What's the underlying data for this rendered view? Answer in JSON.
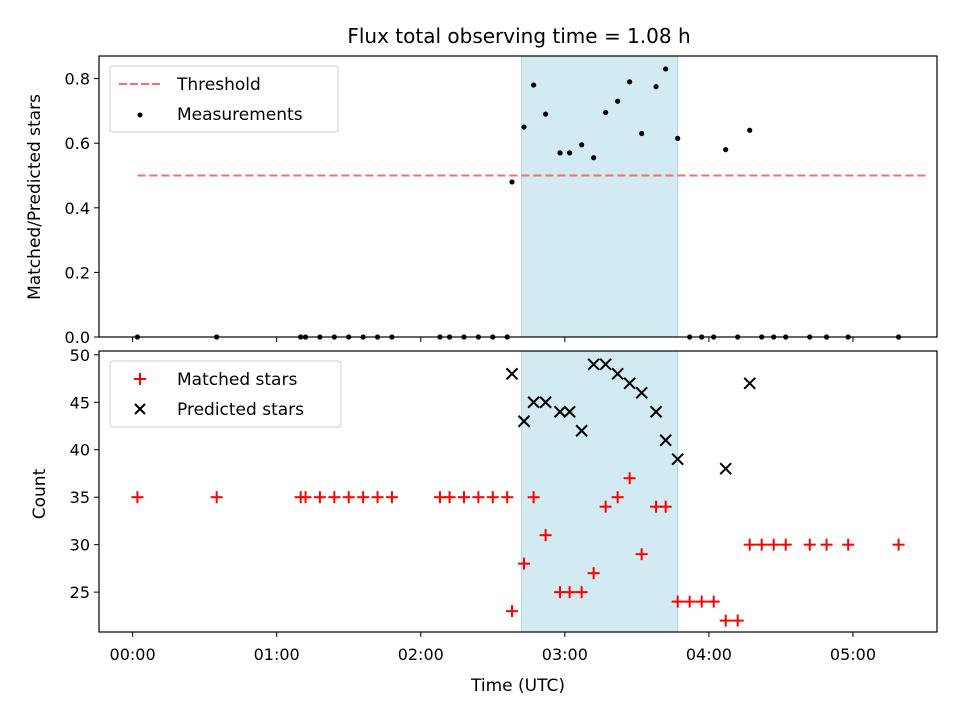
{
  "chart_data": [
    {
      "type": "scatter",
      "title": "Flux total observing time = 1.08 h",
      "ylabel": "Matched/Predicted stars",
      "ylim": [
        0,
        0.87
      ],
      "yticks": [
        0.0,
        0.2,
        0.4,
        0.6,
        0.8
      ],
      "ytick_labels": [
        "0.0",
        "0.2",
        "0.4",
        "0.6",
        "0.8"
      ],
      "legend_position": "top-left",
      "shaded_interval": [
        "02:42",
        "03:47"
      ],
      "shade_color": "#add8e6",
      "threshold": {
        "name": "Threshold",
        "value": 0.5,
        "x_range": [
          "00:02",
          "05:31"
        ],
        "style": "dashed",
        "color": "#ff6b6b"
      },
      "series": [
        {
          "name": "Measurements",
          "marker": "dot",
          "color": "#000000",
          "points": [
            [
              "00:02",
              0.0
            ],
            [
              "00:35",
              0.0
            ],
            [
              "01:10",
              0.0
            ],
            [
              "01:12",
              0.0
            ],
            [
              "01:18",
              0.0
            ],
            [
              "01:24",
              0.0
            ],
            [
              "01:30",
              0.0
            ],
            [
              "01:36",
              0.0
            ],
            [
              "01:42",
              0.0
            ],
            [
              "01:48",
              0.0
            ],
            [
              "02:08",
              0.0
            ],
            [
              "02:12",
              0.0
            ],
            [
              "02:18",
              0.0
            ],
            [
              "02:24",
              0.0
            ],
            [
              "02:30",
              0.0
            ],
            [
              "02:36",
              0.0
            ],
            [
              "02:38",
              0.48
            ],
            [
              "02:43",
              0.65
            ],
            [
              "02:47",
              0.78
            ],
            [
              "02:52",
              0.69
            ],
            [
              "02:58",
              0.57
            ],
            [
              "03:02",
              0.57
            ],
            [
              "03:07",
              0.595
            ],
            [
              "03:12",
              0.555
            ],
            [
              "03:17",
              0.695
            ],
            [
              "03:22",
              0.73
            ],
            [
              "03:27",
              0.79
            ],
            [
              "03:32",
              0.63
            ],
            [
              "03:38",
              0.775
            ],
            [
              "03:42",
              0.83
            ],
            [
              "03:47",
              0.615
            ],
            [
              "03:52",
              0.0
            ],
            [
              "03:57",
              0.0
            ],
            [
              "04:02",
              0.0
            ],
            [
              "04:07",
              0.58
            ],
            [
              "04:12",
              0.0
            ],
            [
              "04:17",
              0.64
            ],
            [
              "04:22",
              0.0
            ],
            [
              "04:27",
              0.0
            ],
            [
              "04:32",
              0.0
            ],
            [
              "04:42",
              0.0
            ],
            [
              "04:49",
              0.0
            ],
            [
              "04:58",
              0.0
            ],
            [
              "05:19",
              0.0
            ]
          ]
        }
      ]
    },
    {
      "type": "scatter",
      "xlabel": "Time (UTC)",
      "ylabel": "Count",
      "ylim": [
        20.8,
        50.4
      ],
      "yticks": [
        25,
        30,
        35,
        40,
        45,
        50
      ],
      "ytick_labels": [
        "25",
        "30",
        "35",
        "40",
        "45",
        "50"
      ],
      "xlim": [
        "-00:14",
        "05:35"
      ],
      "xticks": [
        "00:00",
        "01:00",
        "02:00",
        "03:00",
        "04:00",
        "05:00"
      ],
      "xtick_labels": [
        "00:00",
        "01:00",
        "02:00",
        "03:00",
        "04:00",
        "05:00"
      ],
      "legend_position": "top-left",
      "shaded_interval": [
        "02:42",
        "03:47"
      ],
      "shade_color": "#add8e6",
      "series": [
        {
          "name": "Matched stars",
          "marker": "plus",
          "color": "#ff0000",
          "points": [
            [
              "00:02",
              35
            ],
            [
              "00:35",
              35
            ],
            [
              "01:10",
              35
            ],
            [
              "01:12",
              35
            ],
            [
              "01:18",
              35
            ],
            [
              "01:24",
              35
            ],
            [
              "01:30",
              35
            ],
            [
              "01:36",
              35
            ],
            [
              "01:42",
              35
            ],
            [
              "01:48",
              35
            ],
            [
              "02:08",
              35
            ],
            [
              "02:12",
              35
            ],
            [
              "02:18",
              35
            ],
            [
              "02:24",
              35
            ],
            [
              "02:30",
              35
            ],
            [
              "02:36",
              35
            ],
            [
              "02:38",
              23
            ],
            [
              "02:43",
              28
            ],
            [
              "02:47",
              35
            ],
            [
              "02:52",
              31
            ],
            [
              "02:58",
              25
            ],
            [
              "03:02",
              25
            ],
            [
              "03:07",
              25
            ],
            [
              "03:12",
              27
            ],
            [
              "03:17",
              34
            ],
            [
              "03:22",
              35
            ],
            [
              "03:27",
              37
            ],
            [
              "03:32",
              29
            ],
            [
              "03:38",
              34
            ],
            [
              "03:42",
              34
            ],
            [
              "03:47",
              24
            ],
            [
              "03:52",
              24
            ],
            [
              "03:57",
              24
            ],
            [
              "04:02",
              24
            ],
            [
              "04:07",
              22
            ],
            [
              "04:12",
              22
            ],
            [
              "04:17",
              30
            ],
            [
              "04:22",
              30
            ],
            [
              "04:27",
              30
            ],
            [
              "04:32",
              30
            ],
            [
              "04:42",
              30
            ],
            [
              "04:49",
              30
            ],
            [
              "04:58",
              30
            ],
            [
              "05:19",
              30
            ]
          ]
        },
        {
          "name": "Predicted stars",
          "marker": "x",
          "color": "#000000",
          "points": [
            [
              "02:38",
              48
            ],
            [
              "02:43",
              43
            ],
            [
              "02:47",
              45
            ],
            [
              "02:52",
              45
            ],
            [
              "02:58",
              44
            ],
            [
              "03:02",
              44
            ],
            [
              "03:07",
              42
            ],
            [
              "03:12",
              49
            ],
            [
              "03:17",
              49
            ],
            [
              "03:22",
              48
            ],
            [
              "03:27",
              47
            ],
            [
              "03:32",
              46
            ],
            [
              "03:38",
              44
            ],
            [
              "03:42",
              41
            ],
            [
              "03:47",
              39
            ],
            [
              "04:07",
              38
            ],
            [
              "04:17",
              47
            ]
          ]
        }
      ]
    }
  ]
}
